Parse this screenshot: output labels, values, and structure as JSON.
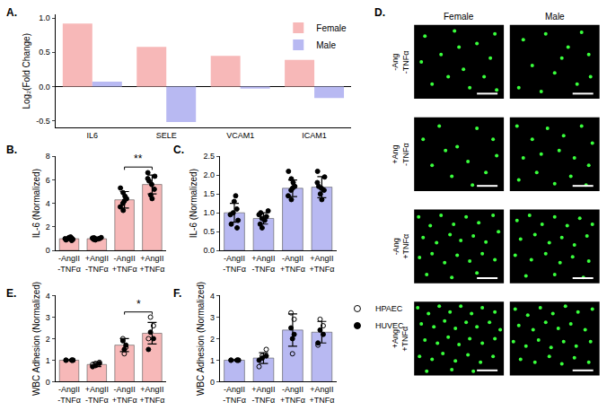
{
  "chart_data": [
    {
      "type": "bar",
      "title": "A.",
      "y_label": "Log₂(Fold Change)",
      "categories": [
        "IL6",
        "SELE",
        "VCAM1",
        "ICAM1"
      ],
      "series": [
        {
          "name": "Female",
          "color": "#f7b8b8",
          "values": [
            0.92,
            0.58,
            0.45,
            0.39
          ]
        },
        {
          "name": "Male",
          "color": "#b8b9f2",
          "values": [
            0.07,
            -0.52,
            -0.03,
            -0.17
          ]
        }
      ],
      "ylim": [
        -0.6,
        1.05
      ],
      "yticks": [
        -0.5,
        {
          "value": 0,
          "label": "0.0"
        },
        0.5,
        {
          "value": 1,
          "label": "1.0"
        }
      ],
      "grid": false,
      "legend": "upper right"
    },
    {
      "type": "bar",
      "title": "B.",
      "y_label": "IL-6 (Normalized)",
      "categories": [
        "-AngII\n-TNFα",
        "+AngII\n-TNFα",
        "-AngII\n+TNFα",
        "+AngII\n+TNFα"
      ],
      "color": "#f7b8b8",
      "values": [
        1.0,
        1.0,
        4.3,
        5.6
      ],
      "error": [
        0.1,
        0.07,
        0.7,
        0.8
      ],
      "points": [
        {
          "marker": "filled",
          "color": "#000000",
          "values": [
            [
              0.85,
              0.9,
              0.95,
              1.0,
              1.0,
              1.05,
              1.1,
              1.15
            ],
            [
              0.9,
              0.95,
              0.98,
              1.0,
              1.02,
              1.05,
              1.08,
              1.1
            ],
            [
              3.4,
              3.7,
              4.0,
              4.2,
              4.4,
              4.6,
              4.9,
              5.3
            ],
            [
              4.4,
              4.7,
              5.2,
              5.6,
              5.9,
              6.1,
              6.3,
              6.6
            ]
          ]
        }
      ],
      "ylim": [
        0,
        8
      ],
      "yticks": [
        0,
        2,
        4,
        6,
        8
      ],
      "grid": false,
      "annotations": [
        {
          "text": "**",
          "from": 2,
          "to": 3
        }
      ]
    },
    {
      "type": "bar",
      "title": "C.",
      "y_label": "IL-6 (Normalized)",
      "categories": [
        "-AngII\n-TNFα",
        "+AngII\n-TNFα",
        "-AngII\n+TNFα",
        "+AngII\n+TNFα"
      ],
      "color": "#b8b9f2",
      "values": [
        1.0,
        0.85,
        1.65,
        1.68
      ],
      "error": [
        0.25,
        0.15,
        0.22,
        0.28
      ],
      "points": [
        {
          "marker": "filled",
          "color": "#000000",
          "values": [
            [
              0.6,
              0.7,
              0.8,
              0.95,
              1.0,
              1.1,
              1.3,
              1.45
            ],
            [
              0.6,
              0.7,
              0.8,
              0.85,
              0.9,
              0.95,
              1.0,
              1.05
            ],
            [
              1.35,
              1.45,
              1.6,
              1.65,
              1.7,
              1.8,
              1.9,
              2.1
            ],
            [
              1.35,
              1.5,
              1.6,
              1.65,
              1.7,
              1.8,
              1.95,
              2.1
            ]
          ]
        }
      ],
      "ylim": [
        0,
        2.5
      ],
      "yticks": [
        {
          "value": 0,
          "label": "0.0"
        },
        0.5,
        {
          "value": 1,
          "label": "1.0"
        },
        1.5,
        {
          "value": 2,
          "label": "2.0"
        },
        2.5
      ],
      "grid": false
    },
    {
      "type": "bar",
      "title": "E.",
      "y_label": "WBC Adhesion (Normalized)",
      "categories": [
        "-AngII\n-TNFα",
        "+AngII\n-TNFα",
        "-AngII\n+TNFα",
        "+AngII\n+TNFα"
      ],
      "color": "#f7b8b8",
      "values": [
        1.0,
        0.8,
        1.7,
        2.25
      ],
      "error": [
        0.02,
        0.1,
        0.3,
        0.5
      ],
      "points": [
        {
          "name": "HPAEC",
          "marker": "open",
          "color": "#000000",
          "values": [
            [
              1,
              1,
              1
            ],
            [
              0.8,
              0.85,
              0.9
            ],
            [
              1.3,
              1.6,
              2.0
            ],
            [
              2.0,
              2.6,
              3.0
            ]
          ]
        },
        {
          "name": "HUVEC",
          "marker": "filled",
          "color": "#000000",
          "values": [
            [
              1,
              1,
              1
            ],
            [
              0.7,
              0.75,
              0.85
            ],
            [
              1.5,
              1.7,
              1.9
            ],
            [
              1.5,
              2.0,
              2.3
            ]
          ]
        }
      ],
      "ylim": [
        0,
        4
      ],
      "yticks": [
        0,
        1,
        2,
        3,
        4
      ],
      "grid": false,
      "annotations": [
        {
          "text": "*",
          "from": 2,
          "to": 3
        }
      ]
    },
    {
      "type": "bar",
      "title": "F.",
      "y_label": "WBC Adhesion (Normalized)",
      "categories": [
        "-AngII\n-TNFα",
        "+AngII\n-TNFα",
        "-AngII\n+TNFα",
        "+AngII\n+TNFα"
      ],
      "color": "#b8b9f2",
      "values": [
        1.0,
        1.1,
        2.4,
        2.3
      ],
      "error": [
        0.02,
        0.25,
        0.75,
        0.5
      ],
      "points": [
        {
          "name": "HPAEC",
          "marker": "open",
          "color": "#000000",
          "values": [
            [
              1,
              1,
              1
            ],
            [
              0.7,
              1.2,
              1.5
            ],
            [
              1.3,
              2.9,
              3.2
            ],
            [
              1.7,
              2.6,
              2.9
            ]
          ]
        },
        {
          "name": "HUVEC",
          "marker": "filled",
          "color": "#000000",
          "values": [
            [
              1,
              1,
              1
            ],
            [
              1.0,
              1.1,
              1.2
            ],
            [
              2.0,
              2.2,
              2.5
            ],
            [
              1.8,
              2.2,
              2.4
            ]
          ]
        }
      ],
      "ylim": [
        0,
        4
      ],
      "yticks": [
        0,
        1,
        2,
        3,
        4
      ],
      "grid": false,
      "legend": "upper right"
    },
    {
      "type": "image_grid",
      "title": "D.",
      "columns": [
        "Female",
        "Male"
      ],
      "rows": [
        "-Ang\n-TNFα",
        "+Ang\n-TNFα",
        "-Ang\n+TNFα",
        "+Ang\n+TNFα"
      ],
      "color": "#39ff3c",
      "tick_labels": false,
      "xlim": [
        0,
        100
      ],
      "ylim": [
        0,
        100
      ],
      "cells": [
        [
          [
            [
              12,
              85
            ],
            [
              30,
              60
            ],
            [
              45,
              92
            ],
            [
              55,
              40
            ],
            [
              70,
              75
            ],
            [
              85,
              55
            ],
            [
              20,
              20
            ],
            [
              62,
              15
            ],
            [
              90,
              88
            ],
            [
              38,
              30
            ],
            [
              78,
              30
            ],
            [
              8,
              50
            ],
            [
              50,
              70
            ],
            [
              92,
              12
            ]
          ],
          [
            [
              15,
              80
            ],
            [
              40,
              88
            ],
            [
              65,
              70
            ],
            [
              88,
              60
            ],
            [
              25,
              45
            ],
            [
              50,
              35
            ],
            [
              75,
              20
            ],
            [
              10,
              15
            ],
            [
              58,
              55
            ],
            [
              35,
              10
            ],
            [
              90,
              30
            ],
            [
              80,
              90
            ]
          ]
        ],
        [
          [
            [
              10,
              70
            ],
            [
              28,
              88
            ],
            [
              48,
              60
            ],
            [
              70,
              85
            ],
            [
              88,
              70
            ],
            [
              20,
              35
            ],
            [
              42,
              20
            ],
            [
              60,
              40
            ],
            [
              80,
              25
            ],
            [
              92,
              48
            ],
            [
              35,
              55
            ],
            [
              65,
              8
            ]
          ],
          [
            [
              8,
              88
            ],
            [
              25,
              70
            ],
            [
              42,
              85
            ],
            [
              60,
              75
            ],
            [
              80,
              88
            ],
            [
              92,
              65
            ],
            [
              15,
              45
            ],
            [
              35,
              50
            ],
            [
              55,
              55
            ],
            [
              72,
              45
            ],
            [
              88,
              35
            ],
            [
              10,
              15
            ],
            [
              30,
              25
            ],
            [
              50,
              10
            ],
            [
              68,
              20
            ],
            [
              85,
              8
            ]
          ]
        ],
        [
          [
            [
              5,
              90
            ],
            [
              18,
              78
            ],
            [
              30,
              92
            ],
            [
              44,
              80
            ],
            [
              58,
              90
            ],
            [
              72,
              82
            ],
            [
              88,
              92
            ],
            [
              10,
              62
            ],
            [
              25,
              55
            ],
            [
              40,
              66
            ],
            [
              52,
              58
            ],
            [
              66,
              64
            ],
            [
              80,
              56
            ],
            [
              94,
              70
            ],
            [
              6,
              35
            ],
            [
              20,
              40
            ],
            [
              34,
              28
            ],
            [
              48,
              38
            ],
            [
              62,
              30
            ],
            [
              76,
              40
            ],
            [
              90,
              32
            ],
            [
              14,
              12
            ],
            [
              42,
              8
            ],
            [
              70,
              14
            ]
          ],
          [
            [
              8,
              85
            ],
            [
              22,
              92
            ],
            [
              36,
              80
            ],
            [
              50,
              90
            ],
            [
              64,
              78
            ],
            [
              78,
              88
            ],
            [
              92,
              80
            ],
            [
              12,
              60
            ],
            [
              28,
              66
            ],
            [
              44,
              55
            ],
            [
              58,
              62
            ],
            [
              72,
              52
            ],
            [
              86,
              64
            ],
            [
              6,
              38
            ],
            [
              24,
              32
            ],
            [
              40,
              40
            ],
            [
              56,
              28
            ],
            [
              70,
              36
            ],
            [
              88,
              30
            ],
            [
              18,
              10
            ],
            [
              50,
              12
            ],
            [
              82,
              8
            ]
          ]
        ],
        [
          [
            [
              4,
              92
            ],
            [
              16,
              84
            ],
            [
              28,
              94
            ],
            [
              40,
              86
            ],
            [
              52,
              94
            ],
            [
              64,
              84
            ],
            [
              76,
              92
            ],
            [
              90,
              86
            ],
            [
              8,
              70
            ],
            [
              22,
              66
            ],
            [
              34,
              74
            ],
            [
              46,
              64
            ],
            [
              58,
              72
            ],
            [
              70,
              66
            ],
            [
              84,
              72
            ],
            [
              96,
              62
            ],
            [
              12,
              48
            ],
            [
              26,
              44
            ],
            [
              38,
              52
            ],
            [
              50,
              42
            ],
            [
              62,
              50
            ],
            [
              76,
              44
            ],
            [
              90,
              50
            ],
            [
              6,
              26
            ],
            [
              20,
              22
            ],
            [
              32,
              30
            ],
            [
              46,
              20
            ],
            [
              60,
              28
            ],
            [
              74,
              18
            ],
            [
              88,
              26
            ],
            [
              14,
              6
            ],
            [
              42,
              8
            ],
            [
              66,
              6
            ]
          ],
          [
            [
              6,
              90
            ],
            [
              20,
              82
            ],
            [
              34,
              92
            ],
            [
              48,
              84
            ],
            [
              62,
              94
            ],
            [
              76,
              86
            ],
            [
              92,
              90
            ],
            [
              10,
              68
            ],
            [
              26,
              62
            ],
            [
              40,
              72
            ],
            [
              54,
              64
            ],
            [
              68,
              70
            ],
            [
              84,
              62
            ],
            [
              4,
              46
            ],
            [
              18,
              40
            ],
            [
              32,
              48
            ],
            [
              46,
              38
            ],
            [
              60,
              46
            ],
            [
              74,
              40
            ],
            [
              90,
              46
            ],
            [
              12,
              22
            ],
            [
              28,
              18
            ],
            [
              44,
              26
            ],
            [
              58,
              16
            ],
            [
              72,
              24
            ],
            [
              88,
              18
            ]
          ]
        ]
      ]
    }
  ]
}
